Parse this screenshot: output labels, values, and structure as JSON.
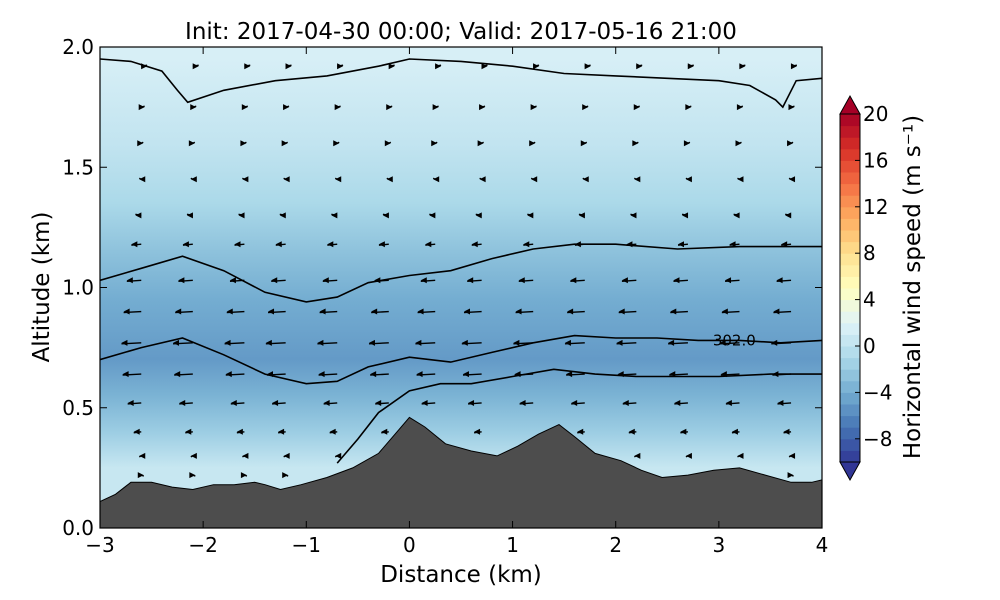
{
  "chart_data": {
    "type": "heatmap",
    "title": "Init: 2017-04-30 00:00; Valid: 2017-05-16 21:00",
    "xlabel": "Distance (km)",
    "ylabel": "Altitude (km)",
    "xlim": [
      -3,
      4
    ],
    "ylim": [
      0,
      2.0
    ],
    "x_ticks": [
      -3,
      -2,
      -1,
      0,
      1,
      2,
      3,
      4
    ],
    "x_tick_labels": [
      "−3",
      "−2",
      "−1",
      "0",
      "1",
      "2",
      "3",
      "4"
    ],
    "y_ticks": [
      0.0,
      0.5,
      1.0,
      1.5,
      2.0
    ],
    "y_tick_labels": [
      "0.0",
      "0.5",
      "1.0",
      "1.5",
      "2.0"
    ],
    "colorbar": {
      "label": "Horizontal wind speed (m s⁻¹)",
      "min": -10,
      "max": 20,
      "ticks": [
        -8,
        -4,
        0,
        4,
        8,
        12,
        16,
        20
      ],
      "tick_labels": [
        "−8",
        "−4",
        "0",
        "4",
        "8",
        "12",
        "16",
        "20"
      ],
      "colormap": "RdYlBu_r",
      "extend": "both"
    },
    "wind_speed_levels": [
      {
        "altitude_km": 1.95,
        "speed": 1.5
      },
      {
        "altitude_km": 1.6,
        "speed": 0.3
      },
      {
        "altitude_km": 1.35,
        "speed": -1.0
      },
      {
        "altitude_km": 1.15,
        "speed": -2.6
      },
      {
        "altitude_km": 0.95,
        "speed": -4.0
      },
      {
        "altitude_km": 0.7,
        "speed": -5.0
      },
      {
        "altitude_km": 0.55,
        "speed": -3.6
      },
      {
        "altitude_km": 0.4,
        "speed": -1.8
      },
      {
        "altitude_km": 0.25,
        "speed": 0.6
      }
    ],
    "terrain": {
      "x_km": [
        -3.0,
        -2.85,
        -2.7,
        -2.5,
        -2.3,
        -2.1,
        -1.9,
        -1.7,
        -1.5,
        -1.4,
        -1.25,
        -1.05,
        -0.8,
        -0.55,
        -0.3,
        -0.1,
        0.0,
        0.15,
        0.35,
        0.6,
        0.85,
        1.05,
        1.25,
        1.45,
        1.6,
        1.8,
        2.05,
        2.25,
        2.45,
        2.7,
        2.95,
        3.2,
        3.45,
        3.7,
        3.9,
        4.0
      ],
      "altitude_km": [
        0.11,
        0.14,
        0.19,
        0.19,
        0.17,
        0.16,
        0.18,
        0.18,
        0.19,
        0.18,
        0.16,
        0.18,
        0.21,
        0.25,
        0.31,
        0.41,
        0.46,
        0.42,
        0.35,
        0.32,
        0.3,
        0.34,
        0.39,
        0.43,
        0.38,
        0.31,
        0.28,
        0.24,
        0.21,
        0.22,
        0.24,
        0.25,
        0.22,
        0.19,
        0.19,
        0.2
      ]
    },
    "potential_temperature_contours": [
      {
        "label": "",
        "x_km": [
          -3.0,
          -2.7,
          -2.4,
          -2.25,
          -2.15,
          -1.8,
          -1.3,
          -0.8,
          -0.3,
          0.0,
          0.5,
          1.0,
          1.5,
          2.0,
          2.5,
          3.0,
          3.3,
          3.55,
          3.62,
          3.75,
          4.0
        ],
        "altitude_km": [
          1.95,
          1.94,
          1.9,
          1.82,
          1.77,
          1.82,
          1.86,
          1.88,
          1.92,
          1.95,
          1.94,
          1.92,
          1.89,
          1.88,
          1.87,
          1.86,
          1.84,
          1.78,
          1.75,
          1.86,
          1.87
        ]
      },
      {
        "label": "",
        "x_km": [
          -3.0,
          -2.6,
          -2.2,
          -1.8,
          -1.4,
          -1.0,
          -0.7,
          -0.4,
          0.0,
          0.4,
          0.8,
          1.2,
          1.6,
          2.0,
          2.6,
          3.2,
          3.7,
          4.0
        ],
        "altitude_km": [
          1.03,
          1.08,
          1.13,
          1.07,
          0.98,
          0.94,
          0.96,
          1.02,
          1.05,
          1.07,
          1.12,
          1.16,
          1.18,
          1.18,
          1.16,
          1.17,
          1.17,
          1.17
        ]
      },
      {
        "label": "302.0",
        "x_km": [
          -3.0,
          -2.6,
          -2.2,
          -1.8,
          -1.4,
          -1.0,
          -0.7,
          -0.4,
          0.0,
          0.4,
          0.8,
          1.2,
          1.6,
          2.0,
          2.4,
          2.8,
          3.2,
          3.6,
          4.0
        ],
        "altitude_km": [
          0.7,
          0.75,
          0.79,
          0.72,
          0.64,
          0.6,
          0.61,
          0.67,
          0.71,
          0.69,
          0.73,
          0.77,
          0.8,
          0.79,
          0.79,
          0.78,
          0.78,
          0.77,
          0.78
        ]
      },
      {
        "label": "",
        "x_km": [
          -0.7,
          -0.5,
          -0.3,
          0.0,
          0.3,
          0.6,
          1.0,
          1.4,
          1.8,
          2.2,
          2.6,
          3.0,
          3.5,
          4.0
        ],
        "altitude_km": [
          0.27,
          0.37,
          0.48,
          0.57,
          0.6,
          0.6,
          0.63,
          0.66,
          0.64,
          0.63,
          0.63,
          0.63,
          0.64,
          0.64
        ]
      }
    ],
    "contour_labels": [
      "302.0"
    ],
    "wind_vector_columns_km": [
      -2.6,
      -2.1,
      -1.6,
      -1.2,
      -0.7,
      -0.2,
      0.25,
      0.7,
      1.2,
      1.7,
      2.2,
      2.7,
      3.2,
      3.7
    ],
    "wind_vector_rows_km": [
      1.92,
      1.75,
      1.6,
      1.45,
      1.3,
      1.18,
      1.03,
      0.9,
      0.77,
      0.64,
      0.52,
      0.4,
      0.3,
      0.22
    ]
  },
  "colors": {
    "terrain": "#4d4d4d",
    "contour": "#000000",
    "background": "#ffffff"
  }
}
